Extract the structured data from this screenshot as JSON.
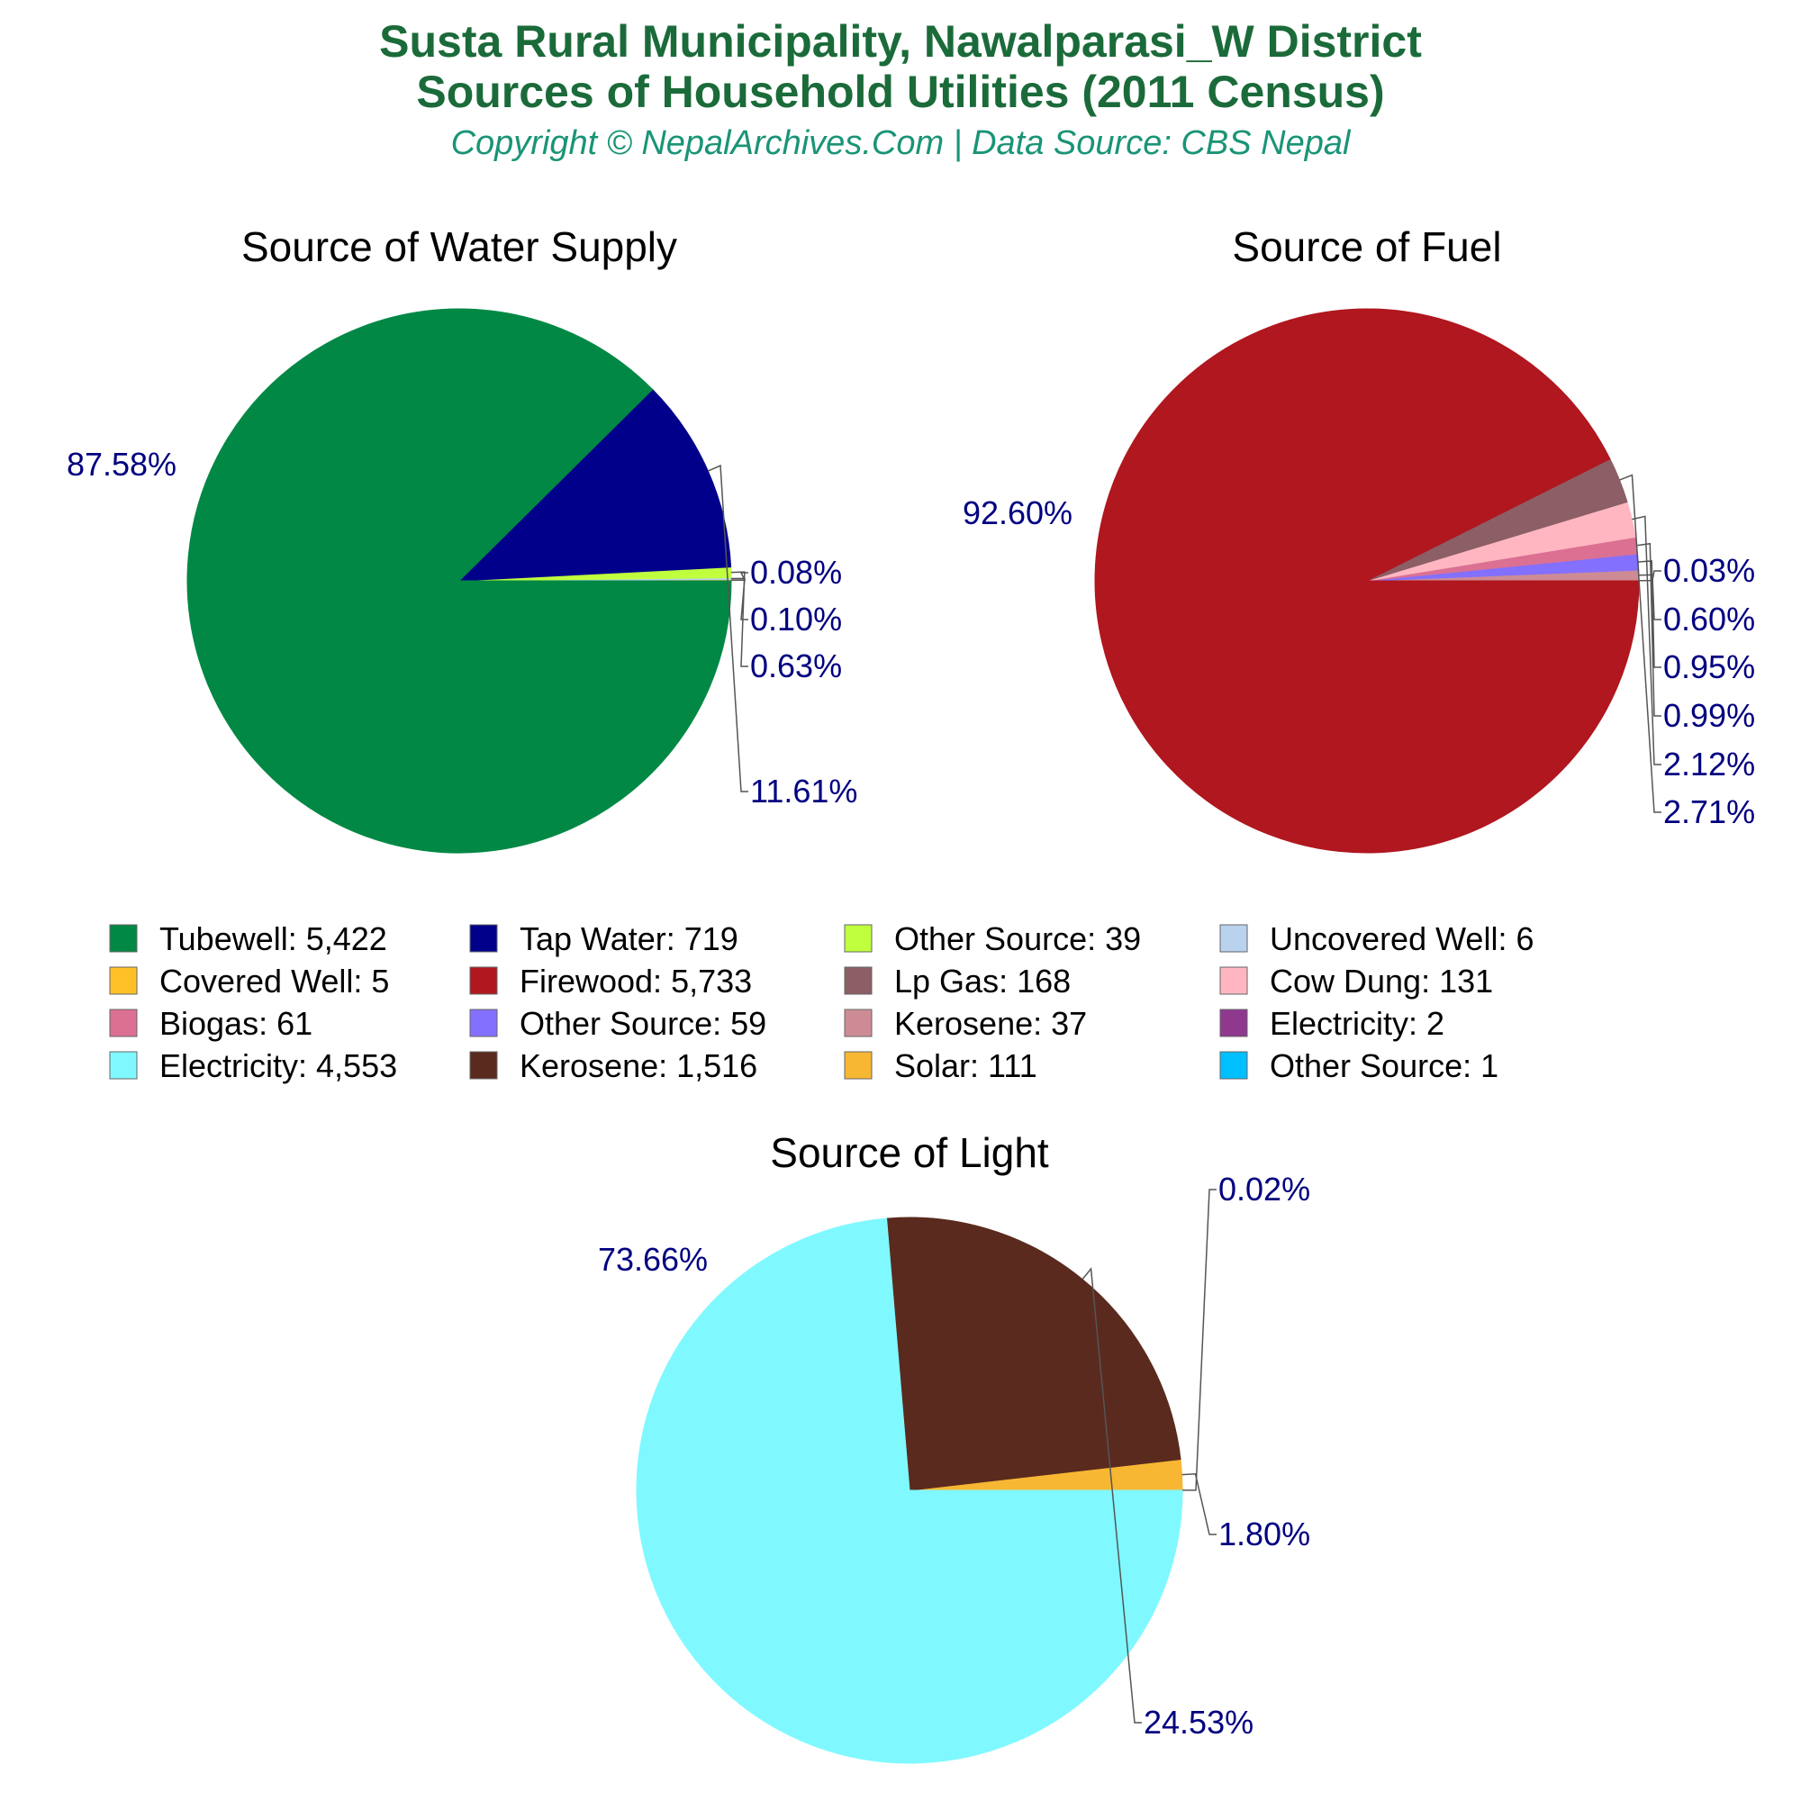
{
  "header": {
    "title_line1": "Susta Rural Municipality, Nawalparasi_W District",
    "title_line2": "Sources of Household Utilities (2011 Census)",
    "copyright": "Copyright © NepalArchives.Com | Data Source: CBS Nepal"
  },
  "label_color": "#000080",
  "chart_data": [
    {
      "type": "pie",
      "title": "Source of Water Supply",
      "slices": [
        {
          "category": "Tubewell",
          "value": 5422,
          "percent_label": "87.58%",
          "color": "#008844"
        },
        {
          "category": "Tap Water",
          "value": 719,
          "percent_label": "11.61%",
          "color": "#00008b"
        },
        {
          "category": "Other Source",
          "value": 39,
          "percent_label": "0.63%",
          "color": "#c0ff3e"
        },
        {
          "category": "Uncovered Well",
          "value": 6,
          "percent_label": "0.10%",
          "color": "#b9d3ee"
        },
        {
          "category": "Covered Well",
          "value": 5,
          "percent_label": "0.08%",
          "color": "#ffc125"
        }
      ]
    },
    {
      "type": "pie",
      "title": "Source of Fuel",
      "slices": [
        {
          "category": "Firewood",
          "value": 5733,
          "percent_label": "92.60%",
          "color": "#b0171f"
        },
        {
          "category": "Lp Gas",
          "value": 168,
          "percent_label": "2.71%",
          "color": "#8b5f65"
        },
        {
          "category": "Cow Dung",
          "value": 131,
          "percent_label": "2.12%",
          "color": "#ffb6c1"
        },
        {
          "category": "Biogas",
          "value": 61,
          "percent_label": "0.99%",
          "color": "#db7093"
        },
        {
          "category": "Other Source",
          "value": 59,
          "percent_label": "0.95%",
          "color": "#8470ff"
        },
        {
          "category": "Kerosene",
          "value": 37,
          "percent_label": "0.60%",
          "color": "#cd8c95"
        },
        {
          "category": "Electricity",
          "value": 2,
          "percent_label": "0.03%",
          "color": "#8e388e"
        }
      ]
    },
    {
      "type": "pie",
      "title": "Source of Light",
      "slices": [
        {
          "category": "Electricity",
          "value": 4553,
          "percent_label": "73.66%",
          "color": "#7ff9ff"
        },
        {
          "category": "Kerosene",
          "value": 1516,
          "percent_label": "24.53%",
          "color": "#5a2a1f"
        },
        {
          "category": "Solar",
          "value": 111,
          "percent_label": "1.80%",
          "color": "#f7b733"
        },
        {
          "category": "Other Source",
          "value": 1,
          "percent_label": "0.02%",
          "color": "#00bfff"
        }
      ]
    }
  ],
  "legend": [
    {
      "label": "Tubewell: 5,422",
      "color": "#008844"
    },
    {
      "label": "Tap Water: 719",
      "color": "#00008b"
    },
    {
      "label": "Other Source: 39",
      "color": "#c0ff3e"
    },
    {
      "label": "Uncovered Well: 6",
      "color": "#b9d3ee"
    },
    {
      "label": "Covered Well: 5",
      "color": "#ffc125"
    },
    {
      "label": "Firewood: 5,733",
      "color": "#b0171f"
    },
    {
      "label": "Lp Gas: 168",
      "color": "#8b5f65"
    },
    {
      "label": "Cow Dung: 131",
      "color": "#ffb6c1"
    },
    {
      "label": "Biogas: 61",
      "color": "#db7093"
    },
    {
      "label": "Other Source: 59",
      "color": "#8470ff"
    },
    {
      "label": "Kerosene: 37",
      "color": "#cd8c95"
    },
    {
      "label": "Electricity: 2",
      "color": "#8e388e"
    },
    {
      "label": "Electricity: 4,553",
      "color": "#7ff9ff"
    },
    {
      "label": "Kerosene: 1,516",
      "color": "#5a2a1f"
    },
    {
      "label": "Solar: 111",
      "color": "#f7b733"
    },
    {
      "label": "Other Source: 1",
      "color": "#00bfff"
    }
  ]
}
